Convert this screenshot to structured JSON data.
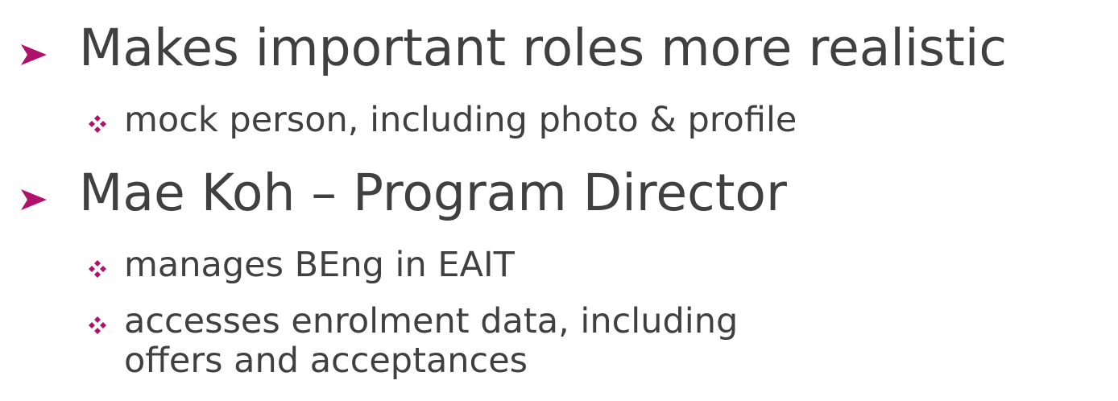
{
  "colors": {
    "text": "#404040",
    "bullet_accent": "#b0126b"
  },
  "bullets": [
    {
      "level": 1,
      "marker_icon": "arrow-bullet-icon",
      "text": "Makes important roles more realistic"
    },
    {
      "level": 2,
      "marker_icon": "diamond-bullet-icon",
      "text": "mock person, including photo & profile"
    },
    {
      "level": 1,
      "marker_icon": "arrow-bullet-icon",
      "text": "Mae Koh – Program Director"
    },
    {
      "level": 2,
      "marker_icon": "diamond-bullet-icon",
      "text": "manages BEng in EAIT"
    },
    {
      "level": 2,
      "marker_icon": "diamond-bullet-icon",
      "text_line1": "accesses enrolment data, including",
      "text_line2": "offers and acceptances"
    }
  ]
}
